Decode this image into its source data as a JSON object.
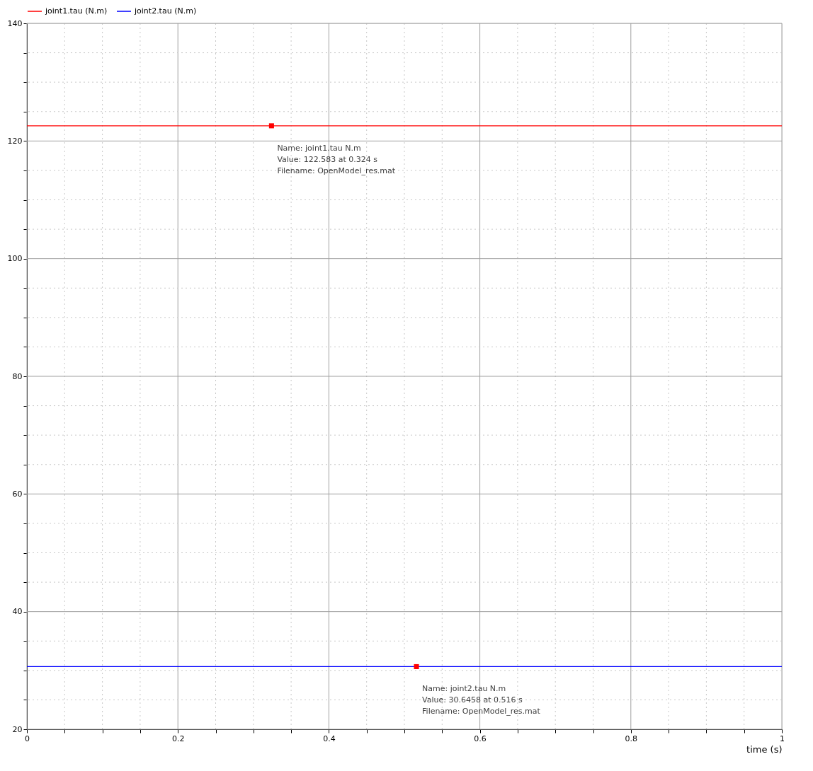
{
  "chart_data": {
    "type": "line",
    "xlabel": "time (s)",
    "series": [
      {
        "name": "joint1.tau (N.m)",
        "color": "#ff0000",
        "x": [
          0,
          1
        ],
        "values": [
          122.583,
          122.583
        ]
      },
      {
        "name": "joint2.tau (N.m)",
        "color": "#0000ff",
        "x": [
          0,
          1
        ],
        "values": [
          30.6458,
          30.6458
        ]
      },
      {
        "type": "scatter",
        "marker": "square",
        "color": "#ff0000",
        "x": [
          0.324,
          0.516
        ],
        "values": [
          122.583,
          30.6458
        ]
      }
    ],
    "xlim": [
      0,
      1
    ],
    "xticks": [
      0,
      {
        "value": 0.05,
        "label": null
      },
      {
        "value": 0.1,
        "label": null
      },
      {
        "value": 0.15,
        "label": null
      },
      0.2,
      {
        "value": 0.25,
        "label": null
      },
      {
        "value": 0.3,
        "label": null
      },
      {
        "value": 0.35,
        "label": null
      },
      0.4,
      {
        "value": 0.45,
        "label": null
      },
      {
        "value": 0.5,
        "label": null
      },
      {
        "value": 0.55,
        "label": null
      },
      0.6,
      {
        "value": 0.65,
        "label": null
      },
      {
        "value": 0.7,
        "label": null
      },
      {
        "value": 0.75,
        "label": null
      },
      0.8,
      {
        "value": 0.85,
        "label": null
      },
      {
        "value": 0.9,
        "label": null
      },
      {
        "value": 0.95,
        "label": null
      },
      1
    ],
    "ylim": [
      20,
      140
    ],
    "yticks": [
      20,
      {
        "value": 25,
        "label": null
      },
      {
        "value": 30,
        "label": null
      },
      {
        "value": 35,
        "label": null
      },
      40,
      {
        "value": 45,
        "label": null
      },
      {
        "value": 50,
        "label": null
      },
      {
        "value": 55,
        "label": null
      },
      60,
      {
        "value": 65,
        "label": null
      },
      {
        "value": 70,
        "label": null
      },
      {
        "value": 75,
        "label": null
      },
      80,
      {
        "value": 85,
        "label": null
      },
      {
        "value": 90,
        "label": null
      },
      {
        "value": 95,
        "label": null
      },
      100,
      {
        "value": 105,
        "label": null
      },
      {
        "value": 110,
        "label": null
      },
      {
        "value": 115,
        "label": null
      },
      120,
      {
        "value": 125,
        "label": null
      },
      {
        "value": 130,
        "label": null
      },
      {
        "value": 135,
        "label": null
      },
      140
    ],
    "grid": true,
    "legend": "top left",
    "marker": "none",
    "line_style": "solid",
    "annotations": [
      {
        "text": "Name: joint1.tau N.m\nValue: 122.583 at 0.324 s\nFilename: OpenModel_res.mat",
        "x": 0.324,
        "y": 122.583
      },
      {
        "text": "Name: joint2.tau N.m\nValue: 30.6458 at 0.516 s\nFilename: OpenModel_res.mat",
        "x": 0.516,
        "y": 30.6458
      }
    ]
  }
}
